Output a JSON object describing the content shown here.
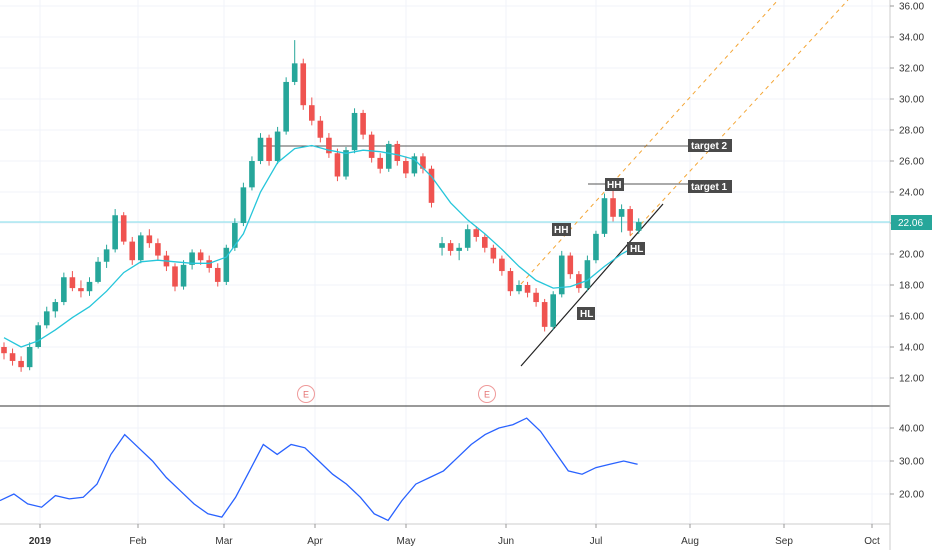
{
  "chart_data": [
    {
      "type": "candlestick",
      "ylim": [
        10.5,
        36.5
      ],
      "y_ticks": [
        "12.00",
        "14.00",
        "16.00",
        "18.00",
        "20.00",
        "22.00",
        "24.00",
        "26.00",
        "28.00",
        "30.00",
        "32.00",
        "34.00",
        "36.00"
      ],
      "x_labels": [
        "2019",
        "Feb",
        "Mar",
        "Apr",
        "May",
        "Jun",
        "Jul",
        "Aug",
        "Sep",
        "Oct"
      ],
      "last_price": "22.06",
      "colors": {
        "up": "#26a69a",
        "down": "#ef5350",
        "ma": "#26c6da",
        "osc": "#2962ff",
        "trend": "#f4a636",
        "line": "#555555",
        "price_line": "#80deea",
        "tag_bg": "#4a4a4a"
      },
      "ohlc": [
        [
          14.0,
          14.3,
          13.2,
          13.6
        ],
        [
          13.6,
          13.9,
          12.8,
          13.1
        ],
        [
          13.1,
          13.4,
          12.4,
          12.7
        ],
        [
          12.7,
          14.3,
          12.5,
          14.0
        ],
        [
          14.0,
          15.6,
          13.9,
          15.4
        ],
        [
          15.4,
          16.6,
          15.2,
          16.3
        ],
        [
          16.3,
          17.1,
          15.9,
          16.9
        ],
        [
          16.9,
          18.8,
          16.7,
          18.5
        ],
        [
          18.5,
          18.9,
          17.6,
          17.8
        ],
        [
          17.8,
          18.3,
          17.2,
          17.6
        ],
        [
          17.6,
          18.5,
          17.3,
          18.2
        ],
        [
          18.2,
          19.8,
          18.1,
          19.5
        ],
        [
          19.5,
          20.6,
          19.1,
          20.3
        ],
        [
          20.3,
          22.9,
          20.1,
          22.5
        ],
        [
          22.5,
          22.7,
          20.6,
          20.8
        ],
        [
          20.8,
          21.1,
          19.3,
          19.6
        ],
        [
          19.6,
          21.4,
          19.4,
          21.2
        ],
        [
          21.2,
          21.6,
          20.4,
          20.7
        ],
        [
          20.7,
          21.0,
          19.6,
          19.9
        ],
        [
          19.9,
          20.2,
          18.9,
          19.2
        ],
        [
          19.2,
          19.4,
          17.6,
          17.9
        ],
        [
          17.9,
          19.6,
          17.7,
          19.3
        ],
        [
          19.3,
          20.3,
          19.0,
          20.1
        ],
        [
          20.1,
          20.3,
          19.3,
          19.6
        ],
        [
          19.6,
          19.9,
          18.8,
          19.1
        ],
        [
          19.1,
          19.4,
          17.9,
          18.2
        ],
        [
          18.2,
          20.6,
          18.0,
          20.4
        ],
        [
          20.4,
          22.3,
          20.2,
          22.0
        ],
        [
          22.0,
          24.6,
          21.8,
          24.3
        ],
        [
          24.3,
          26.3,
          24.1,
          26.0
        ],
        [
          26.0,
          27.8,
          25.8,
          27.5
        ],
        [
          27.5,
          27.7,
          25.7,
          26.0
        ],
        [
          26.0,
          28.2,
          25.8,
          27.9
        ],
        [
          27.9,
          31.4,
          27.7,
          31.1
        ],
        [
          31.1,
          33.8,
          30.9,
          32.3
        ],
        [
          32.3,
          32.6,
          29.3,
          29.6
        ],
        [
          29.6,
          30.1,
          28.3,
          28.6
        ],
        [
          28.6,
          28.9,
          27.2,
          27.5
        ],
        [
          27.5,
          27.8,
          26.2,
          26.5
        ],
        [
          26.5,
          26.8,
          24.7,
          25.0
        ],
        [
          25.0,
          26.9,
          24.8,
          26.7
        ],
        [
          26.7,
          29.4,
          26.5,
          29.1
        ],
        [
          29.1,
          29.3,
          27.4,
          27.7
        ],
        [
          27.7,
          27.9,
          25.9,
          26.2
        ],
        [
          26.2,
          26.5,
          25.2,
          25.5
        ],
        [
          25.5,
          27.3,
          25.3,
          27.1
        ],
        [
          27.1,
          27.3,
          25.7,
          26.0
        ],
        [
          26.0,
          26.3,
          24.9,
          25.2
        ],
        [
          25.2,
          26.5,
          25.0,
          26.3
        ],
        [
          26.3,
          26.5,
          25.2,
          25.5
        ],
        [
          25.5,
          25.7,
          23.0,
          23.3
        ],
        [
          20.4,
          21.1,
          19.9,
          20.7
        ],
        [
          20.7,
          20.9,
          19.9,
          20.2
        ],
        [
          20.2,
          20.7,
          19.6,
          20.4
        ],
        [
          20.4,
          21.9,
          20.2,
          21.6
        ],
        [
          21.6,
          21.8,
          20.8,
          21.1
        ],
        [
          21.1,
          21.3,
          20.1,
          20.4
        ],
        [
          20.4,
          20.6,
          19.4,
          19.7
        ],
        [
          19.7,
          19.9,
          18.6,
          18.9
        ],
        [
          18.9,
          19.1,
          17.3,
          17.6
        ],
        [
          17.6,
          18.3,
          17.4,
          18.0
        ],
        [
          18.0,
          18.2,
          17.2,
          17.5
        ],
        [
          17.5,
          17.8,
          16.6,
          16.9
        ],
        [
          16.9,
          17.1,
          15.0,
          15.3
        ],
        [
          15.3,
          17.6,
          15.1,
          17.4
        ],
        [
          17.4,
          20.2,
          17.2,
          19.9
        ],
        [
          19.9,
          20.1,
          18.4,
          18.7
        ],
        [
          18.7,
          18.9,
          17.5,
          17.8
        ],
        [
          17.8,
          19.9,
          17.6,
          19.6
        ],
        [
          19.6,
          21.5,
          19.4,
          21.3
        ],
        [
          21.3,
          23.9,
          21.1,
          23.6
        ],
        [
          23.6,
          24.8,
          22.1,
          22.4
        ],
        [
          22.4,
          23.2,
          21.4,
          22.9
        ],
        [
          22.9,
          23.1,
          21.2,
          21.5
        ],
        [
          21.5,
          22.3,
          21.3,
          22.06
        ]
      ],
      "ma20": [
        [
          0,
          14.6
        ],
        [
          2,
          14.0
        ],
        [
          4,
          14.4
        ],
        [
          6,
          15.1
        ],
        [
          8,
          15.9
        ],
        [
          10,
          16.6
        ],
        [
          12,
          17.6
        ],
        [
          14,
          18.8
        ],
        [
          16,
          19.5
        ],
        [
          18,
          19.6
        ],
        [
          20,
          19.5
        ],
        [
          22,
          19.4
        ],
        [
          24,
          19.4
        ],
        [
          26,
          19.8
        ],
        [
          28,
          21.3
        ],
        [
          30,
          24.0
        ],
        [
          32,
          25.9
        ],
        [
          34,
          26.8
        ],
        [
          36,
          27.0
        ],
        [
          38,
          26.7
        ],
        [
          40,
          26.5
        ],
        [
          42,
          26.7
        ],
        [
          44,
          26.6
        ],
        [
          46,
          26.4
        ],
        [
          48,
          26.1
        ],
        [
          50,
          25.0
        ],
        [
          52,
          23.3
        ],
        [
          54,
          22.2
        ],
        [
          56,
          21.3
        ],
        [
          58,
          20.3
        ],
        [
          60,
          19.2
        ],
        [
          62,
          18.3
        ],
        [
          64,
          17.8
        ],
        [
          66,
          17.9
        ],
        [
          68,
          18.3
        ],
        [
          70,
          19.2
        ],
        [
          72,
          20.0
        ],
        [
          74,
          20.6
        ]
      ],
      "earnings": [
        "E",
        "E"
      ],
      "annotations": {
        "target2": "target 2",
        "target1": "target 1",
        "swing_labels": [
          "HH",
          "HH",
          "HL",
          "HL"
        ]
      }
    },
    {
      "type": "line",
      "name": "",
      "ylim": [
        10,
        47
      ],
      "y_ticks": [
        "20.00",
        "30.00",
        "40.00"
      ],
      "points": [
        [
          0,
          18
        ],
        [
          3,
          20
        ],
        [
          6,
          17
        ],
        [
          9,
          16
        ],
        [
          12,
          19.5
        ],
        [
          15,
          18.5
        ],
        [
          18,
          19
        ],
        [
          21,
          23
        ],
        [
          24,
          32
        ],
        [
          27,
          38
        ],
        [
          30,
          34
        ],
        [
          33,
          30
        ],
        [
          36,
          25
        ],
        [
          39,
          21
        ],
        [
          42,
          17
        ],
        [
          45,
          14
        ],
        [
          48,
          13
        ],
        [
          51,
          19
        ],
        [
          54,
          27
        ],
        [
          57,
          35
        ],
        [
          60,
          32
        ],
        [
          63,
          35
        ],
        [
          66,
          34
        ],
        [
          69,
          30
        ],
        [
          72,
          26
        ],
        [
          75,
          23
        ],
        [
          78,
          19
        ],
        [
          81,
          14
        ],
        [
          84,
          12
        ],
        [
          87,
          18
        ],
        [
          90,
          23
        ],
        [
          93,
          25
        ],
        [
          96,
          27
        ],
        [
          99,
          31
        ],
        [
          102,
          35
        ],
        [
          105,
          38
        ],
        [
          108,
          40
        ],
        [
          111,
          41
        ],
        [
          114,
          43
        ],
        [
          117,
          39
        ],
        [
          120,
          33
        ],
        [
          123,
          27
        ],
        [
          126,
          26
        ],
        [
          129,
          28
        ],
        [
          132,
          29
        ],
        [
          135,
          30
        ],
        [
          138,
          29
        ]
      ]
    }
  ]
}
